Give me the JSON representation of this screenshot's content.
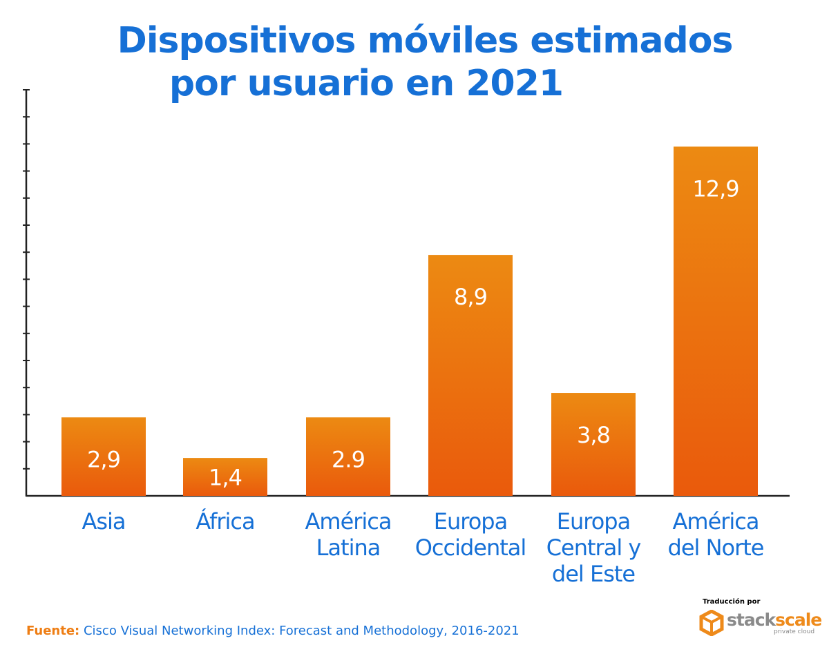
{
  "chart_data": {
    "type": "bar",
    "title": "Dispositivos móviles estimados por usuario en 2021",
    "title_lines": [
      "Dispositivos móviles estimados",
      "por usuario en 2021"
    ],
    "categories": [
      [
        "Asia"
      ],
      [
        "África"
      ],
      [
        "América",
        "Latina"
      ],
      [
        "Europa",
        "Occidental"
      ],
      [
        "Europa",
        "Central y",
        "del Este"
      ],
      [
        "América",
        "del Norte"
      ]
    ],
    "values": [
      2.9,
      1.4,
      2.9,
      8.9,
      3.8,
      12.9
    ],
    "data_labels": [
      "2,9",
      "1,4",
      "2.9",
      "8,9",
      "3,8",
      "12,9"
    ],
    "ylim": [
      0,
      15
    ],
    "y_ticks_count": 15,
    "y_tick_labels": false,
    "grid": false,
    "xlabel": "",
    "ylabel": "",
    "colors": {
      "bar_top": "#ec8a12",
      "bar_bottom": "#ea5a0c",
      "text": "#1670d6",
      "axis": "#222222"
    }
  },
  "source": {
    "label": "Fuente:",
    "text": "Cisco Visual Networking Index: Forecast and Methodology, 2016-2021"
  },
  "credit": {
    "label": "Traducción por",
    "logo_text_1": "stack",
    "logo_text_2": "scale",
    "logo_sub": "private cloud"
  }
}
